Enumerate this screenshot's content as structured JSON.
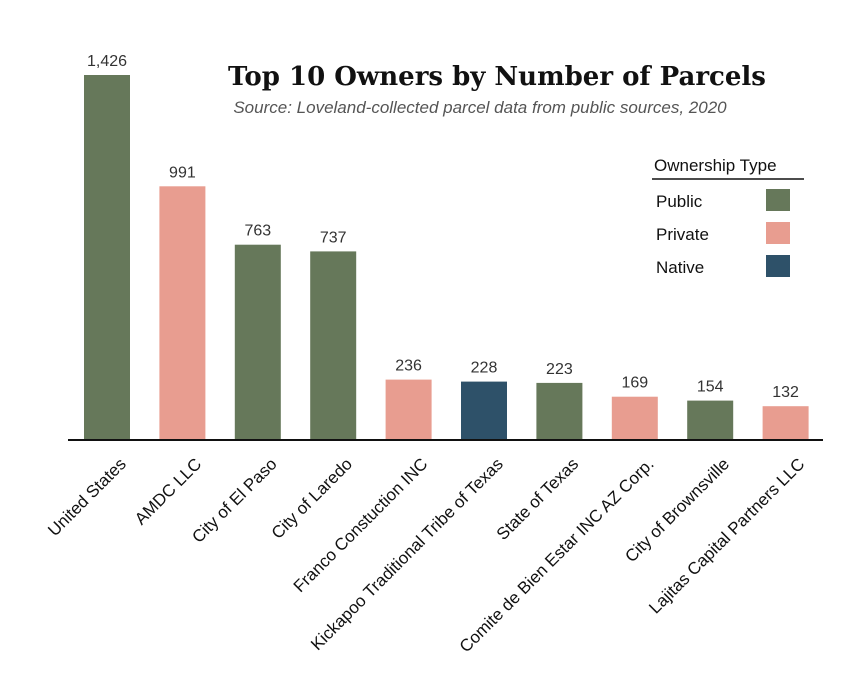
{
  "chart_data": {
    "type": "bar",
    "title": "Top 10 Owners by Number of Parcels",
    "subtitle": "Source: Loveland-collected parcel data from public sources, 2020",
    "categories": [
      "United States",
      "AMDC LLC",
      "City of El Paso",
      "City of Laredo",
      "Franco Constuction INC",
      "Kickapoo Traditional Tribe of Texas",
      "State of Texas",
      "Comite de Bien Estar INC AZ Corp.",
      "City of Brownsville",
      "Lajitas Capital Partners LLC"
    ],
    "values": [
      1426,
      991,
      763,
      737,
      236,
      228,
      223,
      169,
      154,
      132
    ],
    "value_labels": [
      "1,426",
      "991",
      "763",
      "737",
      "236",
      "228",
      "223",
      "169",
      "154",
      "132"
    ],
    "ownership": [
      "Public",
      "Private",
      "Public",
      "Public",
      "Private",
      "Native",
      "Public",
      "Private",
      "Public",
      "Private"
    ],
    "ylim": [
      0,
      1426
    ],
    "grid": false,
    "legend": {
      "title": "Ownership Type",
      "placement": "top-right",
      "entries": [
        {
          "label": "Public",
          "color": "#66785a"
        },
        {
          "label": "Private",
          "color": "#e89d90"
        },
        {
          "label": "Native",
          "color": "#2e5169"
        }
      ]
    }
  }
}
